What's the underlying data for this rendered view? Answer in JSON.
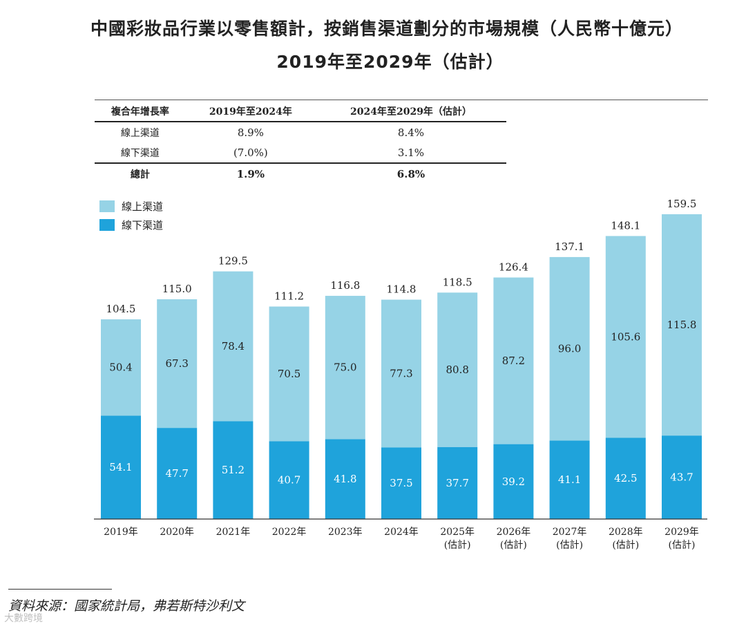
{
  "title": {
    "line1": "中國彩妝品行業以零售額計，按銷售渠道劃分的市場規模（人民幣十億元）",
    "line2": "2019年至2029年（估計）"
  },
  "cagr_table": {
    "headers": [
      "複合年增長率",
      "2019年至2024年",
      "2024年至2029年（估計）"
    ],
    "rows": [
      {
        "label": "線上渠道",
        "values": [
          "8.9%",
          "8.4%"
        ]
      },
      {
        "label": "線下渠道",
        "values": [
          "(7.0%)",
          "3.1%"
        ]
      },
      {
        "label": "總計",
        "values": [
          "1.9%",
          "6.8%"
        ]
      }
    ]
  },
  "chart_data": {
    "type": "bar",
    "stacked": true,
    "categories": [
      "2019年",
      "2020年",
      "2021年",
      "2022年",
      "2023年",
      "2024年",
      "2025年\n(估計)",
      "2026年\n(估計)",
      "2027年\n(估計)",
      "2028年\n(估計)",
      "2029年\n(估計)"
    ],
    "category_lines": [
      [
        "2019年"
      ],
      [
        "2020年"
      ],
      [
        "2021年"
      ],
      [
        "2022年"
      ],
      [
        "2023年"
      ],
      [
        "2024年"
      ],
      [
        "2025年",
        "(估計)"
      ],
      [
        "2026年",
        "(估計)"
      ],
      [
        "2027年",
        "(估計)"
      ],
      [
        "2028年",
        "(估計)"
      ],
      [
        "2029年",
        "(估計)"
      ]
    ],
    "series": [
      {
        "name": "線下渠道",
        "color": "#1fa3db",
        "label_color": "#ffffff",
        "values": [
          54.1,
          47.7,
          51.2,
          40.7,
          41.8,
          37.5,
          37.7,
          39.2,
          41.1,
          42.5,
          43.7
        ]
      },
      {
        "name": "線上渠道",
        "color": "#96d3e6",
        "label_color": "#222222",
        "values": [
          50.4,
          67.3,
          78.4,
          70.5,
          75.0,
          77.3,
          80.8,
          87.2,
          96.0,
          105.6,
          115.8
        ]
      }
    ],
    "totals": [
      104.5,
      115.0,
      129.5,
      111.2,
      116.8,
      114.8,
      118.5,
      126.4,
      137.1,
      148.1,
      159.5
    ],
    "legend": [
      {
        "name": "線上渠道",
        "color": "#96d3e6"
      },
      {
        "name": "線下渠道",
        "color": "#1fa3db"
      }
    ],
    "legend_position": "top-left",
    "ylim": [
      0,
      160
    ],
    "xlabel": "",
    "ylabel": ""
  },
  "source": "資料來源：國家統計局，弗若斯特沙利文",
  "watermark": "大數跨境"
}
